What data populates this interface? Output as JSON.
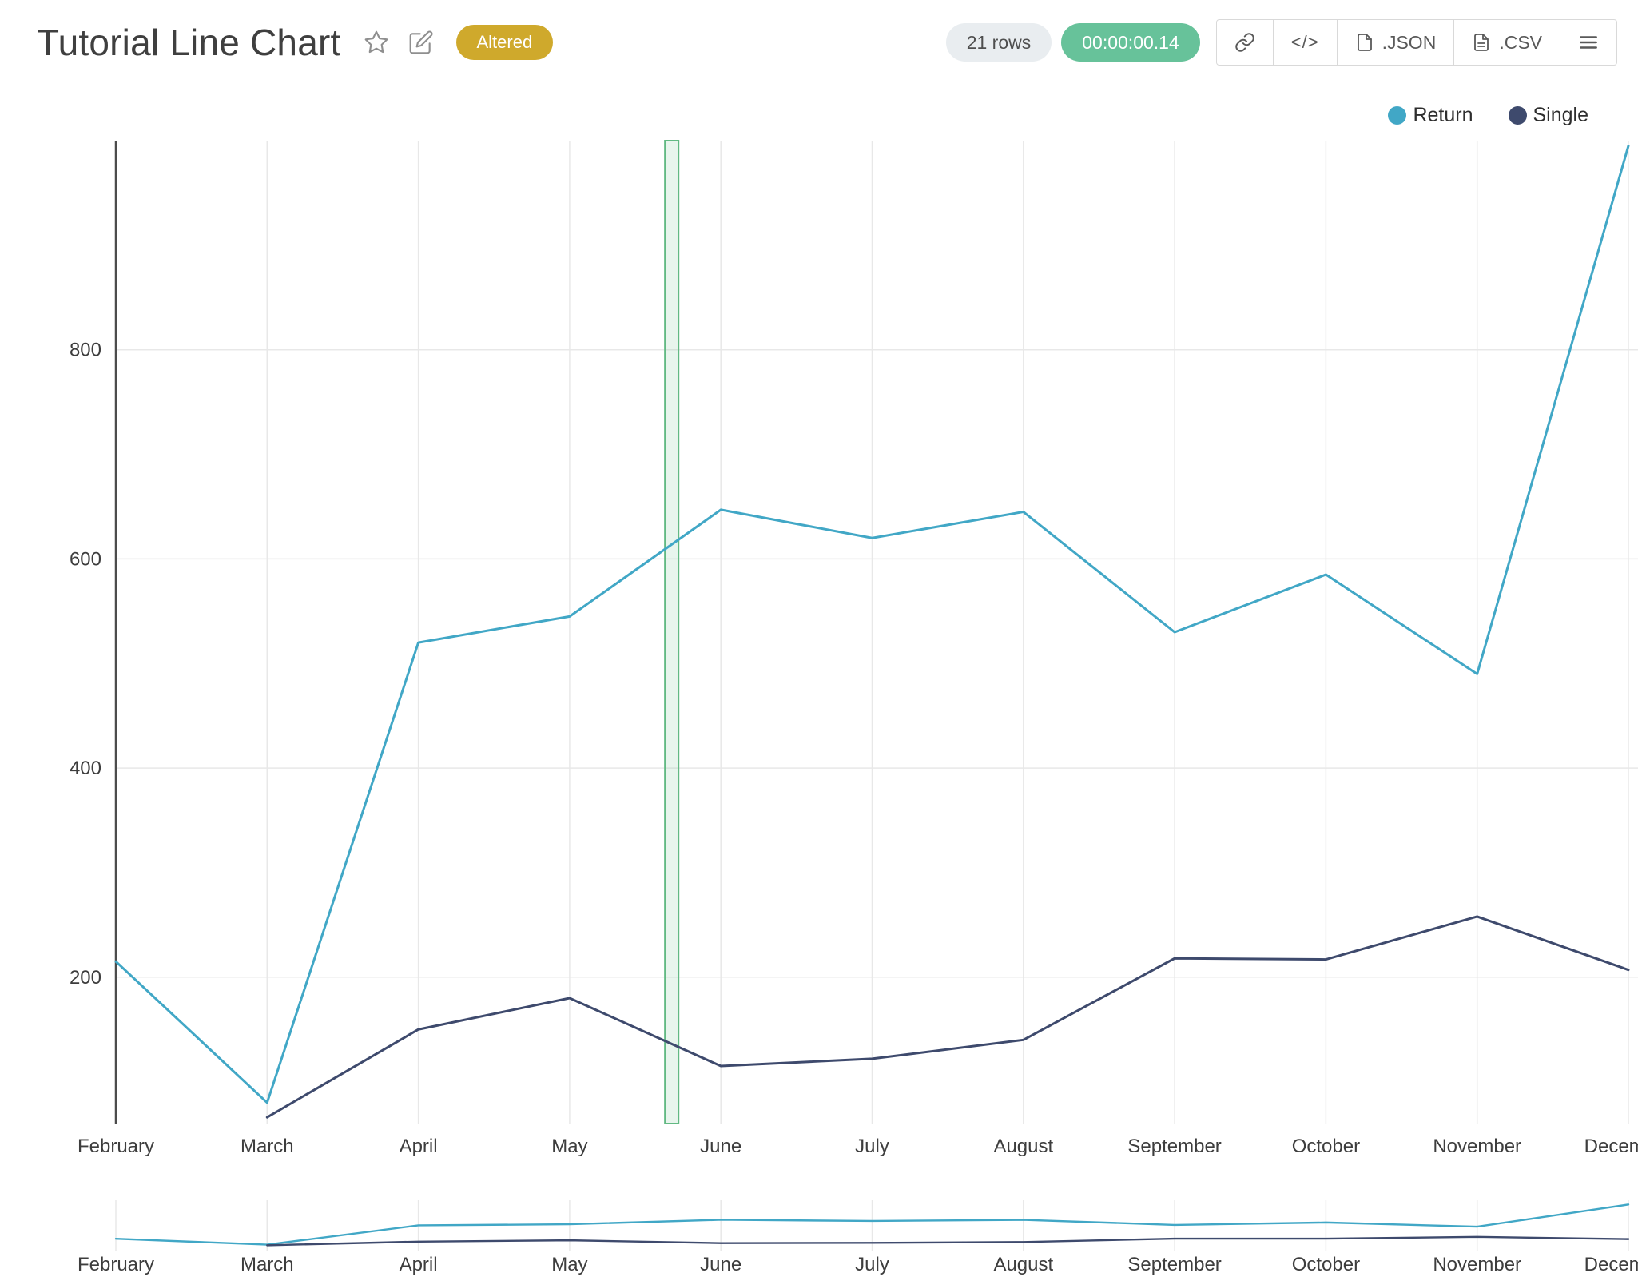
{
  "header": {
    "title": "Tutorial Line Chart",
    "altered_badge": "Altered",
    "rows_count": "21 rows",
    "runtime": "00:00:00.14",
    "embed_label": "</>",
    "export_json_label": ".JSON",
    "export_csv_label": ".CSV"
  },
  "legend": {
    "items": [
      {
        "label": "Return",
        "color": "#41a7c6"
      },
      {
        "label": "Single",
        "color": "#3e4a6d"
      }
    ]
  },
  "chart_data": {
    "type": "line",
    "title": "Tutorial Line Chart",
    "categories": [
      "February",
      "March",
      "April",
      "May",
      "June",
      "July",
      "August",
      "September",
      "October",
      "November",
      "December"
    ],
    "series": [
      {
        "name": "Return",
        "color": "#41a7c6",
        "values": [
          215,
          80,
          520,
          545,
          647,
          620,
          645,
          530,
          585,
          490,
          995
        ]
      },
      {
        "name": "Single",
        "color": "#3e4a6d",
        "values": [
          null,
          66,
          150,
          180,
          115,
          122,
          140,
          218,
          217,
          258,
          207
        ]
      }
    ],
    "xlabel": "",
    "ylabel": "",
    "y_ticks": [
      200,
      400,
      600,
      800
    ],
    "y_range": [
      60,
      1000
    ],
    "grid": true,
    "legend_position": "top-right",
    "rangeslider": true,
    "selection_band": {
      "x_fraction": 0.363,
      "width_fraction": 0.009,
      "color": "#62b983"
    },
    "colors": {
      "grid": "#e8e8e8",
      "axis": "#4c4c4c",
      "tick_text": "#3d3d3d"
    }
  }
}
